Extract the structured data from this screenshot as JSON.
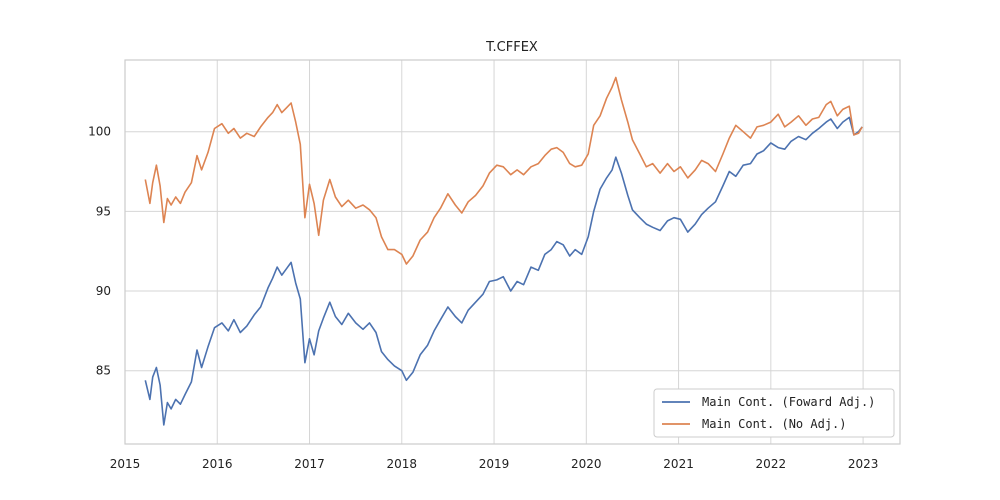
{
  "chart_data": {
    "type": "line",
    "title": "T.CFFEX",
    "xlabel": "",
    "ylabel": "",
    "x_ticks": [
      "2015",
      "2016",
      "2017",
      "2018",
      "2019",
      "2020",
      "2021",
      "2022",
      "2023"
    ],
    "y_ticks": [
      "85",
      "90",
      "95",
      "100"
    ],
    "xlim": [
      2015.0,
      2023.4
    ],
    "ylim": [
      80.4,
      104.5
    ],
    "grid": true,
    "legend_position": "lower-right",
    "series": [
      {
        "name": "Main Cont. (Foward Adj.)",
        "color": "#4c72b0",
        "points": [
          [
            2015.22,
            84.4
          ],
          [
            2015.27,
            83.2
          ],
          [
            2015.3,
            84.6
          ],
          [
            2015.34,
            85.2
          ],
          [
            2015.38,
            84.1
          ],
          [
            2015.42,
            81.6
          ],
          [
            2015.46,
            83.0
          ],
          [
            2015.5,
            82.6
          ],
          [
            2015.55,
            83.2
          ],
          [
            2015.6,
            82.9
          ],
          [
            2015.65,
            83.5
          ],
          [
            2015.72,
            84.3
          ],
          [
            2015.78,
            86.3
          ],
          [
            2015.83,
            85.2
          ],
          [
            2015.9,
            86.5
          ],
          [
            2015.97,
            87.7
          ],
          [
            2016.05,
            88.0
          ],
          [
            2016.12,
            87.5
          ],
          [
            2016.18,
            88.2
          ],
          [
            2016.25,
            87.4
          ],
          [
            2016.32,
            87.8
          ],
          [
            2016.4,
            88.5
          ],
          [
            2016.47,
            89.0
          ],
          [
            2016.55,
            90.2
          ],
          [
            2016.6,
            90.8
          ],
          [
            2016.65,
            91.5
          ],
          [
            2016.7,
            91.0
          ],
          [
            2016.75,
            91.4
          ],
          [
            2016.8,
            91.8
          ],
          [
            2016.85,
            90.5
          ],
          [
            2016.9,
            89.5
          ],
          [
            2016.95,
            85.5
          ],
          [
            2017.0,
            87.0
          ],
          [
            2017.05,
            86.0
          ],
          [
            2017.1,
            87.5
          ],
          [
            2017.15,
            88.3
          ],
          [
            2017.22,
            89.3
          ],
          [
            2017.28,
            88.4
          ],
          [
            2017.35,
            87.9
          ],
          [
            2017.42,
            88.6
          ],
          [
            2017.5,
            88.0
          ],
          [
            2017.58,
            87.6
          ],
          [
            2017.65,
            88.0
          ],
          [
            2017.72,
            87.4
          ],
          [
            2017.78,
            86.2
          ],
          [
            2017.85,
            85.7
          ],
          [
            2017.92,
            85.3
          ],
          [
            2018.0,
            85.0
          ],
          [
            2018.05,
            84.4
          ],
          [
            2018.12,
            84.9
          ],
          [
            2018.2,
            86.0
          ],
          [
            2018.28,
            86.6
          ],
          [
            2018.35,
            87.5
          ],
          [
            2018.42,
            88.2
          ],
          [
            2018.5,
            89.0
          ],
          [
            2018.58,
            88.4
          ],
          [
            2018.65,
            88.0
          ],
          [
            2018.72,
            88.8
          ],
          [
            2018.8,
            89.3
          ],
          [
            2018.88,
            89.8
          ],
          [
            2018.95,
            90.6
          ],
          [
            2019.03,
            90.7
          ],
          [
            2019.1,
            90.9
          ],
          [
            2019.18,
            90.0
          ],
          [
            2019.25,
            90.6
          ],
          [
            2019.32,
            90.4
          ],
          [
            2019.4,
            91.5
          ],
          [
            2019.48,
            91.3
          ],
          [
            2019.55,
            92.3
          ],
          [
            2019.62,
            92.6
          ],
          [
            2019.68,
            93.1
          ],
          [
            2019.75,
            92.9
          ],
          [
            2019.82,
            92.2
          ],
          [
            2019.88,
            92.6
          ],
          [
            2019.95,
            92.3
          ],
          [
            2020.02,
            93.4
          ],
          [
            2020.08,
            95.0
          ],
          [
            2020.15,
            96.4
          ],
          [
            2020.22,
            97.1
          ],
          [
            2020.28,
            97.6
          ],
          [
            2020.32,
            98.4
          ],
          [
            2020.38,
            97.4
          ],
          [
            2020.45,
            96.0
          ],
          [
            2020.5,
            95.1
          ],
          [
            2020.58,
            94.6
          ],
          [
            2020.65,
            94.2
          ],
          [
            2020.72,
            94.0
          ],
          [
            2020.8,
            93.8
          ],
          [
            2020.88,
            94.4
          ],
          [
            2020.95,
            94.6
          ],
          [
            2021.02,
            94.5
          ],
          [
            2021.1,
            93.7
          ],
          [
            2021.18,
            94.2
          ],
          [
            2021.25,
            94.8
          ],
          [
            2021.32,
            95.2
          ],
          [
            2021.4,
            95.6
          ],
          [
            2021.48,
            96.6
          ],
          [
            2021.55,
            97.5
          ],
          [
            2021.62,
            97.2
          ],
          [
            2021.7,
            97.9
          ],
          [
            2021.78,
            98.0
          ],
          [
            2021.85,
            98.6
          ],
          [
            2021.92,
            98.8
          ],
          [
            2022.0,
            99.3
          ],
          [
            2022.08,
            99.0
          ],
          [
            2022.15,
            98.9
          ],
          [
            2022.22,
            99.4
          ],
          [
            2022.3,
            99.7
          ],
          [
            2022.38,
            99.5
          ],
          [
            2022.45,
            99.9
          ],
          [
            2022.52,
            100.2
          ],
          [
            2022.6,
            100.6
          ],
          [
            2022.65,
            100.8
          ],
          [
            2022.72,
            100.2
          ],
          [
            2022.78,
            100.6
          ],
          [
            2022.85,
            100.9
          ],
          [
            2022.9,
            99.8
          ],
          [
            2022.95,
            100.0
          ],
          [
            2022.99,
            100.3
          ]
        ]
      },
      {
        "name": "Main Cont. (No Adj.)",
        "color": "#dd8452",
        "points": [
          [
            2015.22,
            97.0
          ],
          [
            2015.27,
            95.5
          ],
          [
            2015.3,
            96.8
          ],
          [
            2015.34,
            97.9
          ],
          [
            2015.38,
            96.6
          ],
          [
            2015.42,
            94.3
          ],
          [
            2015.46,
            95.8
          ],
          [
            2015.5,
            95.4
          ],
          [
            2015.55,
            95.9
          ],
          [
            2015.6,
            95.5
          ],
          [
            2015.65,
            96.2
          ],
          [
            2015.72,
            96.8
          ],
          [
            2015.78,
            98.5
          ],
          [
            2015.83,
            97.6
          ],
          [
            2015.9,
            98.7
          ],
          [
            2015.97,
            100.2
          ],
          [
            2016.05,
            100.5
          ],
          [
            2016.12,
            99.9
          ],
          [
            2016.18,
            100.2
          ],
          [
            2016.25,
            99.6
          ],
          [
            2016.32,
            99.9
          ],
          [
            2016.4,
            99.7
          ],
          [
            2016.47,
            100.3
          ],
          [
            2016.55,
            100.9
          ],
          [
            2016.6,
            101.2
          ],
          [
            2016.65,
            101.7
          ],
          [
            2016.7,
            101.2
          ],
          [
            2016.75,
            101.5
          ],
          [
            2016.8,
            101.8
          ],
          [
            2016.85,
            100.6
          ],
          [
            2016.9,
            99.2
          ],
          [
            2016.95,
            94.6
          ],
          [
            2017.0,
            96.7
          ],
          [
            2017.05,
            95.5
          ],
          [
            2017.1,
            93.5
          ],
          [
            2017.15,
            95.7
          ],
          [
            2017.22,
            97.0
          ],
          [
            2017.28,
            95.9
          ],
          [
            2017.35,
            95.3
          ],
          [
            2017.42,
            95.7
          ],
          [
            2017.5,
            95.2
          ],
          [
            2017.58,
            95.4
          ],
          [
            2017.65,
            95.1
          ],
          [
            2017.72,
            94.6
          ],
          [
            2017.78,
            93.4
          ],
          [
            2017.85,
            92.6
          ],
          [
            2017.92,
            92.6
          ],
          [
            2018.0,
            92.3
          ],
          [
            2018.05,
            91.7
          ],
          [
            2018.12,
            92.2
          ],
          [
            2018.2,
            93.2
          ],
          [
            2018.28,
            93.7
          ],
          [
            2018.35,
            94.6
          ],
          [
            2018.42,
            95.2
          ],
          [
            2018.5,
            96.1
          ],
          [
            2018.58,
            95.4
          ],
          [
            2018.65,
            94.9
          ],
          [
            2018.72,
            95.6
          ],
          [
            2018.8,
            96.0
          ],
          [
            2018.88,
            96.6
          ],
          [
            2018.95,
            97.4
          ],
          [
            2019.03,
            97.9
          ],
          [
            2019.1,
            97.8
          ],
          [
            2019.18,
            97.3
          ],
          [
            2019.25,
            97.6
          ],
          [
            2019.32,
            97.3
          ],
          [
            2019.4,
            97.8
          ],
          [
            2019.48,
            98.0
          ],
          [
            2019.55,
            98.5
          ],
          [
            2019.62,
            98.9
          ],
          [
            2019.68,
            99.0
          ],
          [
            2019.75,
            98.7
          ],
          [
            2019.82,
            98.0
          ],
          [
            2019.88,
            97.8
          ],
          [
            2019.95,
            97.9
          ],
          [
            2020.02,
            98.6
          ],
          [
            2020.08,
            100.4
          ],
          [
            2020.15,
            101.0
          ],
          [
            2020.22,
            102.1
          ],
          [
            2020.28,
            102.8
          ],
          [
            2020.32,
            103.4
          ],
          [
            2020.38,
            102.0
          ],
          [
            2020.45,
            100.6
          ],
          [
            2020.5,
            99.5
          ],
          [
            2020.58,
            98.6
          ],
          [
            2020.65,
            97.8
          ],
          [
            2020.72,
            98.0
          ],
          [
            2020.8,
            97.4
          ],
          [
            2020.88,
            98.0
          ],
          [
            2020.95,
            97.5
          ],
          [
            2021.02,
            97.8
          ],
          [
            2021.1,
            97.1
          ],
          [
            2021.18,
            97.6
          ],
          [
            2021.25,
            98.2
          ],
          [
            2021.32,
            98.0
          ],
          [
            2021.4,
            97.5
          ],
          [
            2021.48,
            98.6
          ],
          [
            2021.55,
            99.6
          ],
          [
            2021.62,
            100.4
          ],
          [
            2021.7,
            100.0
          ],
          [
            2021.78,
            99.6
          ],
          [
            2021.85,
            100.3
          ],
          [
            2021.92,
            100.4
          ],
          [
            2022.0,
            100.6
          ],
          [
            2022.08,
            101.1
          ],
          [
            2022.15,
            100.3
          ],
          [
            2022.22,
            100.6
          ],
          [
            2022.3,
            101.0
          ],
          [
            2022.38,
            100.4
          ],
          [
            2022.45,
            100.8
          ],
          [
            2022.52,
            100.9
          ],
          [
            2022.6,
            101.7
          ],
          [
            2022.65,
            101.9
          ],
          [
            2022.72,
            101.0
          ],
          [
            2022.78,
            101.4
          ],
          [
            2022.85,
            101.6
          ],
          [
            2022.9,
            99.8
          ],
          [
            2022.95,
            99.9
          ],
          [
            2022.99,
            100.3
          ]
        ]
      }
    ]
  }
}
